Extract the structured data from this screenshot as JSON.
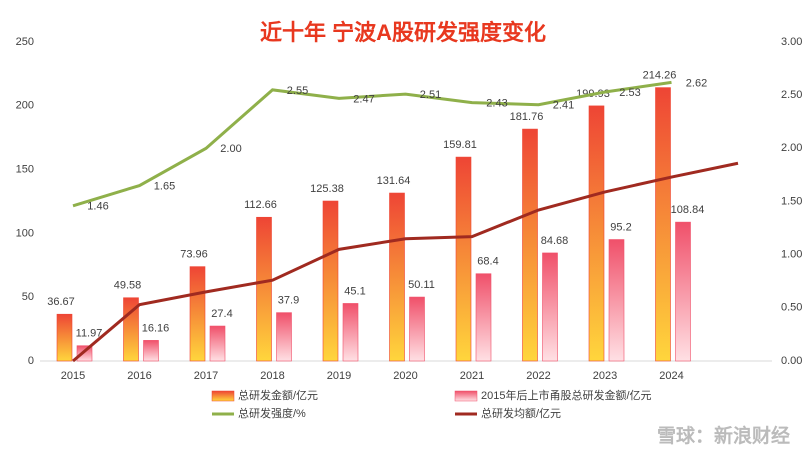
{
  "chart_data": {
    "type": "bar-line",
    "title": "近十年 宁波A股研发强度变化",
    "categories": [
      "2015",
      "2016",
      "2017",
      "2018",
      "2019",
      "2020",
      "2021",
      "2022",
      "2023",
      "2024",
      null
    ],
    "series": [
      {
        "name": "总研发金额/亿元",
        "type": "bar",
        "color": "#ee4535",
        "gradient_end": "#ffd63c",
        "values": [
          36.67,
          49.58,
          73.96,
          112.66,
          125.38,
          131.64,
          159.81,
          181.76,
          199.93,
          214.26,
          null
        ]
      },
      {
        "name": "2015年后上市甬股总研发金额/亿元",
        "type": "bar",
        "color": "#f0506a",
        "gradient_end": "#ffe0e4",
        "values": [
          11.97,
          16.16,
          27.4,
          37.9,
          45.1,
          50.11,
          68.4,
          84.68,
          95.2,
          108.84,
          null
        ]
      },
      {
        "name": "总研发强度/%",
        "type": "line",
        "axis": "y2",
        "color": "#8fb04a",
        "values": [
          1.46,
          1.65,
          2,
          2.55,
          2.47,
          2.51,
          2.43,
          2.41,
          2.53,
          2.62,
          null
        ],
        "value_labels": [
          "1.46",
          "1.65",
          "2.00",
          "2.55",
          "2.47",
          "2.51",
          "2.43",
          "2.41",
          "2.53",
          "2.62",
          null
        ]
      },
      {
        "name": "总研发均额/亿元",
        "type": "line",
        "axis": "y2",
        "color": "#a02a20",
        "values": [
          0,
          0.53,
          0.65,
          0.76,
          1.05,
          1.15,
          1.17,
          1.42,
          1.59,
          1.73,
          1.86
        ]
      }
    ],
    "ylim": [
      0,
      250
    ],
    "yticks": [
      0,
      50,
      100,
      150,
      200,
      250
    ],
    "y2lim": [
      0,
      3
    ],
    "y2ticks": [
      {
        "value": 0,
        "label": "0.00"
      },
      {
        "value": 0.5,
        "label": "0.50"
      },
      {
        "value": 1,
        "label": "1.00"
      },
      {
        "value": 1.5,
        "label": "1.50"
      },
      {
        "value": 2,
        "label": "2.00"
      },
      {
        "value": 2.5,
        "label": "2.50"
      },
      {
        "value": 3,
        "label": "3.00"
      }
    ],
    "legend": "bottom",
    "watermark": "雪球：新浪财经"
  }
}
